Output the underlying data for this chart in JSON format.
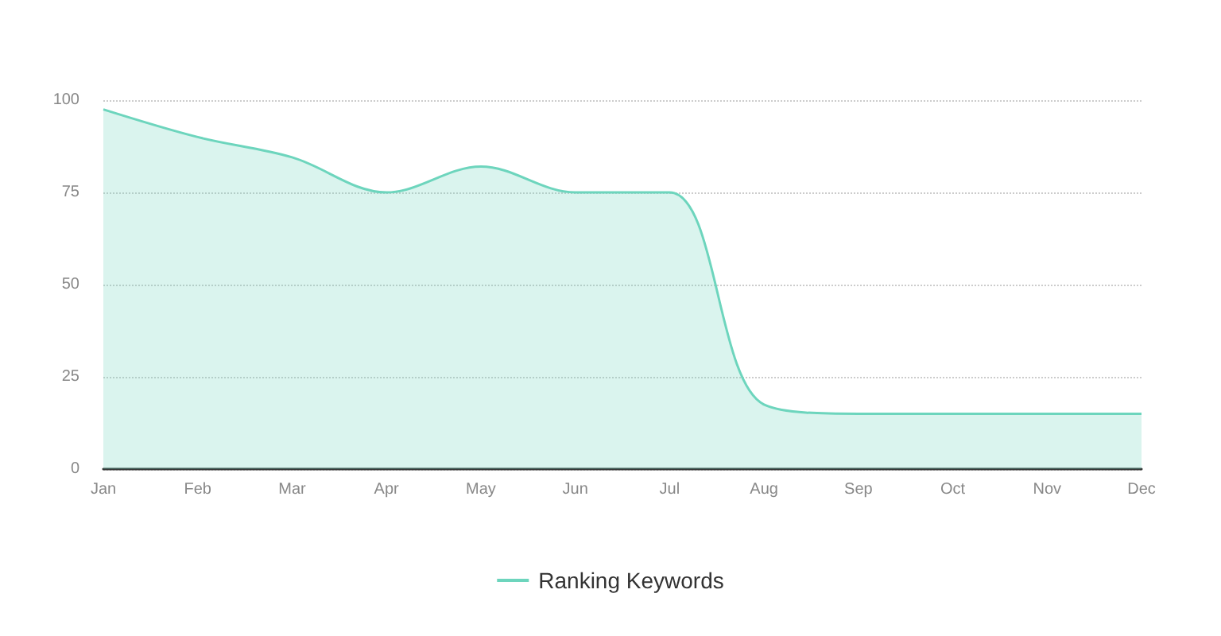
{
  "chart_data": {
    "type": "area",
    "categories": [
      "Jan",
      "Feb",
      "Mar",
      "Apr",
      "May",
      "Jun",
      "Jul",
      "Aug",
      "Sep",
      "Oct",
      "Nov",
      "Dec"
    ],
    "series": [
      {
        "name": "Ranking Keywords",
        "color": "#6dd5bd",
        "values": [
          97.5,
          90,
          84.5,
          75,
          82,
          75,
          75,
          17.5,
          15,
          15,
          15,
          15
        ]
      }
    ],
    "ylim": [
      0,
      100
    ],
    "yticks": [
      0,
      25,
      50,
      75,
      100
    ],
    "grid": "y",
    "legend": "bottom",
    "marker": "none"
  }
}
